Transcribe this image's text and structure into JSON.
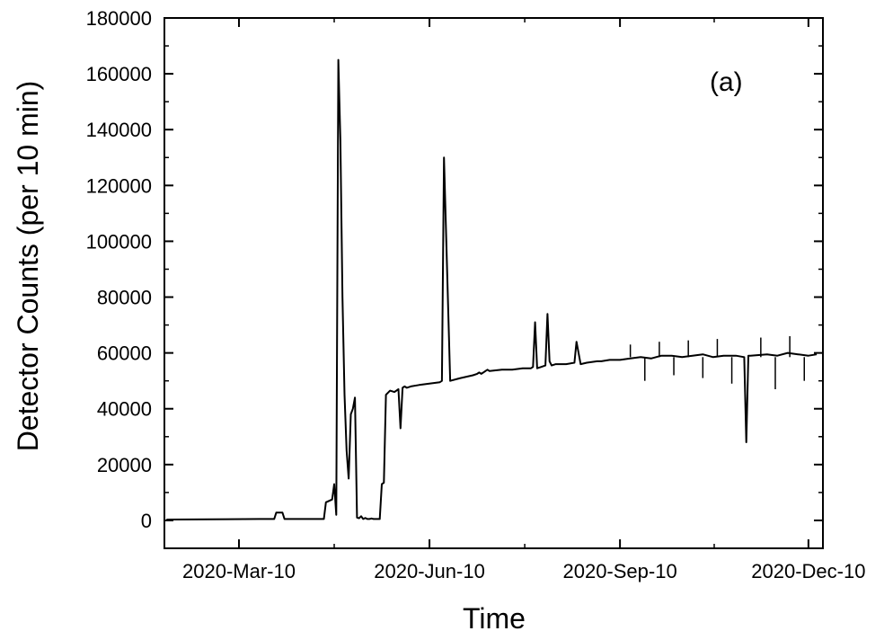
{
  "chart_data": {
    "type": "line",
    "xlabel": "Time",
    "ylabel": "Detector Counts (per 10 min)",
    "annotation": "(a)",
    "x_axis": {
      "range": [
        "2020-02-03",
        "2020-12-17"
      ],
      "ticks": [
        "2020-03-10",
        "2020-06-10",
        "2020-09-10",
        "2020-12-10"
      ],
      "tick_labels": [
        "2020-Mar-10",
        "2020-Jun-10",
        "2020-Sep-10",
        "2020-Dec-10"
      ]
    },
    "y_axis": {
      "range": [
        -10000,
        180000
      ],
      "ticks": [
        0,
        20000,
        40000,
        60000,
        80000,
        100000,
        120000,
        140000,
        160000,
        180000
      ],
      "tick_labels": [
        "0",
        "20000",
        "40000",
        "60000",
        "80000",
        "100000",
        "120000",
        "140000",
        "160000",
        "180000"
      ]
    },
    "grid": false,
    "series": [
      {
        "color": "#000000",
        "x": [
          "2020-02-04",
          "2020-03-20",
          "2020-03-27",
          "2020-03-28",
          "2020-03-31",
          "2020-04-01",
          "2020-04-20",
          "2020-04-21",
          "2020-04-24",
          "2020-04-25",
          "2020-04-26",
          "2020-04-27",
          "2020-04-28",
          "2020-04-29",
          "2020-04-30",
          "2020-05-01",
          "2020-05-02",
          "2020-05-03",
          "2020-05-04",
          "2020-05-05",
          "2020-05-06",
          "2020-05-07",
          "2020-05-08",
          "2020-05-09",
          "2020-05-10",
          "2020-05-11",
          "2020-05-12",
          "2020-05-13",
          "2020-05-14",
          "2020-05-15",
          "2020-05-16",
          "2020-05-17",
          "2020-05-18",
          "2020-05-19",
          "2020-05-20",
          "2020-05-22",
          "2020-05-24",
          "2020-05-25",
          "2020-05-26",
          "2020-05-27",
          "2020-05-28",
          "2020-05-29",
          "2020-05-30",
          "2020-06-01",
          "2020-06-05",
          "2020-06-10",
          "2020-06-15",
          "2020-06-16",
          "2020-06-17",
          "2020-06-20",
          "2020-06-25",
          "2020-07-01",
          "2020-07-03",
          "2020-07-04",
          "2020-07-05",
          "2020-07-06",
          "2020-07-07",
          "2020-07-08",
          "2020-07-09",
          "2020-07-15",
          "2020-07-20",
          "2020-07-25",
          "2020-07-29",
          "2020-07-30",
          "2020-07-31",
          "2020-08-01",
          "2020-08-03",
          "2020-08-05",
          "2020-08-06",
          "2020-08-07",
          "2020-08-08",
          "2020-08-10",
          "2020-08-15",
          "2020-08-19",
          "2020-08-20",
          "2020-08-22",
          "2020-08-25",
          "2020-08-30",
          "2020-09-01",
          "2020-09-05",
          "2020-09-10",
          "2020-09-15",
          "2020-09-20",
          "2020-09-25",
          "2020-09-30",
          "2020-10-05",
          "2020-10-10",
          "2020-10-15",
          "2020-10-20",
          "2020-10-25",
          "2020-10-30",
          "2020-11-05",
          "2020-11-09",
          "2020-11-10",
          "2020-11-11",
          "2020-11-12",
          "2020-11-20",
          "2020-11-25",
          "2020-11-30",
          "2020-12-05",
          "2020-12-10",
          "2020-12-14"
        ],
        "y": [
          300,
          500,
          500,
          2800,
          2800,
          500,
          500,
          6500,
          7500,
          13000,
          2000,
          165000,
          136000,
          80000,
          45000,
          25000,
          15000,
          38000,
          40000,
          44000,
          1000,
          800,
          1500,
          500,
          900,
          500,
          500,
          700,
          500,
          500,
          500,
          500,
          13000,
          13500,
          45000,
          46500,
          46000,
          46500,
          47000,
          33000,
          47500,
          48000,
          47500,
          48000,
          48500,
          49000,
          49500,
          50000,
          130000,
          50000,
          51000,
          52000,
          52500,
          53000,
          52500,
          53000,
          53500,
          54000,
          53500,
          54000,
          54000,
          54500,
          54500,
          55000,
          71000,
          54500,
          55000,
          55500,
          74000,
          57000,
          55500,
          56000,
          56000,
          56500,
          64000,
          56000,
          56500,
          57000,
          57000,
          57500,
          57500,
          58000,
          58500,
          58000,
          59000,
          59000,
          58500,
          59000,
          59500,
          58500,
          59000,
          59000,
          58500,
          28000,
          59000,
          59000,
          59500,
          59000,
          60000,
          59500,
          59000,
          59500
        ]
      }
    ],
    "spikes": [
      {
        "x": [
          "2020-09-15",
          "2020-09-22",
          "2020-09-29",
          "2020-10-06",
          "2020-10-13",
          "2020-10-20",
          "2020-10-27",
          "2020-11-03",
          "2020-11-17",
          "2020-11-24",
          "2020-12-01",
          "2020-12-08"
        ],
        "y": [
          63000,
          50000,
          64000,
          52000,
          64500,
          51000,
          65000,
          49000,
          65500,
          47000,
          66000,
          50000
        ]
      }
    ]
  }
}
